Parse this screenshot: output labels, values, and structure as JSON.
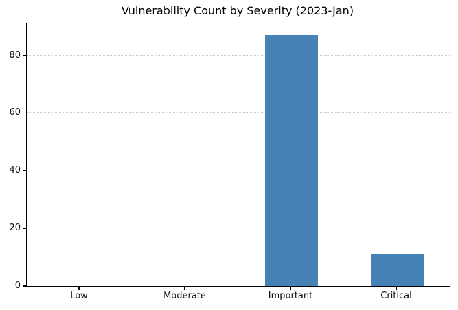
{
  "chart_data": {
    "type": "bar",
    "title": "Vulnerability Count by Severity (2023-Jan)",
    "categories": [
      "Low",
      "Moderate",
      "Important",
      "Critical"
    ],
    "values": [
      0,
      0,
      87,
      11
    ],
    "xlabel": "",
    "ylabel": "",
    "yticks": [
      0,
      20,
      40,
      60,
      80
    ],
    "ylim": [
      0,
      91.35
    ],
    "grid": "horizontal dotted",
    "legend_position": "none",
    "bar_width_fraction": 0.5
  },
  "colors": {
    "bar": "#4682b4",
    "grid": "#c9c9c9",
    "axis": "#000000",
    "tick_text": "#111111",
    "background": "#ffffff"
  }
}
